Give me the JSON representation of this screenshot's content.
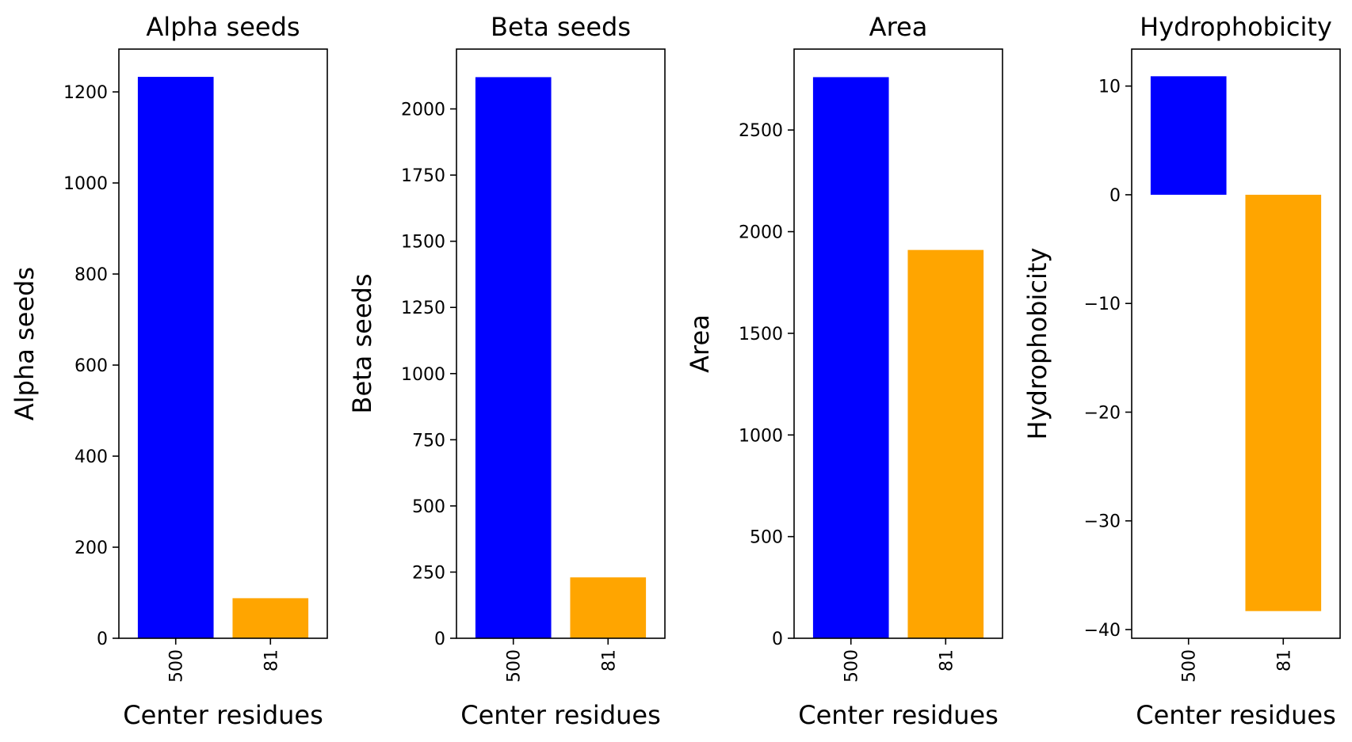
{
  "colors": {
    "bar_500": "#0000ff",
    "bar_81": "#ffa500",
    "axis": "#000000"
  },
  "chart_data": [
    {
      "type": "bar",
      "title": "Alpha seeds",
      "xlabel": "Center residues",
      "ylabel": "Alpha seeds",
      "categories": [
        "500",
        "81"
      ],
      "values": [
        1233,
        88
      ],
      "ylim": [
        0,
        1294
      ],
      "yticks": [
        0,
        200,
        400,
        600,
        800,
        1000,
        1200
      ],
      "grid": false
    },
    {
      "type": "bar",
      "title": "Beta seeds",
      "xlabel": "Center residues",
      "ylabel": "Beta seeds",
      "categories": [
        "500",
        "81"
      ],
      "values": [
        2120,
        230
      ],
      "ylim": [
        0,
        2226
      ],
      "yticks": [
        0,
        250,
        500,
        750,
        1000,
        1250,
        1500,
        1750,
        2000
      ],
      "grid": false
    },
    {
      "type": "bar",
      "title": "Area",
      "xlabel": "Center residues",
      "ylabel": "Area",
      "categories": [
        "500",
        "81"
      ],
      "values": [
        2760,
        1910
      ],
      "ylim": [
        0,
        2898
      ],
      "yticks": [
        0,
        500,
        1000,
        1500,
        2000,
        2500
      ],
      "grid": false
    },
    {
      "type": "bar",
      "title": "Hydrophobicity",
      "xlabel": "Center residues",
      "ylabel": "Hydrophobicity",
      "categories": [
        "500",
        "81"
      ],
      "values": [
        10.9,
        -38.3
      ],
      "ylim": [
        -40.8,
        13.4
      ],
      "yticks": [
        10,
        0,
        -10,
        -20,
        -30,
        -40
      ],
      "ytick_labels": [
        "10",
        "0",
        "−10",
        "−20",
        "−30",
        "−40"
      ],
      "grid": false
    }
  ]
}
